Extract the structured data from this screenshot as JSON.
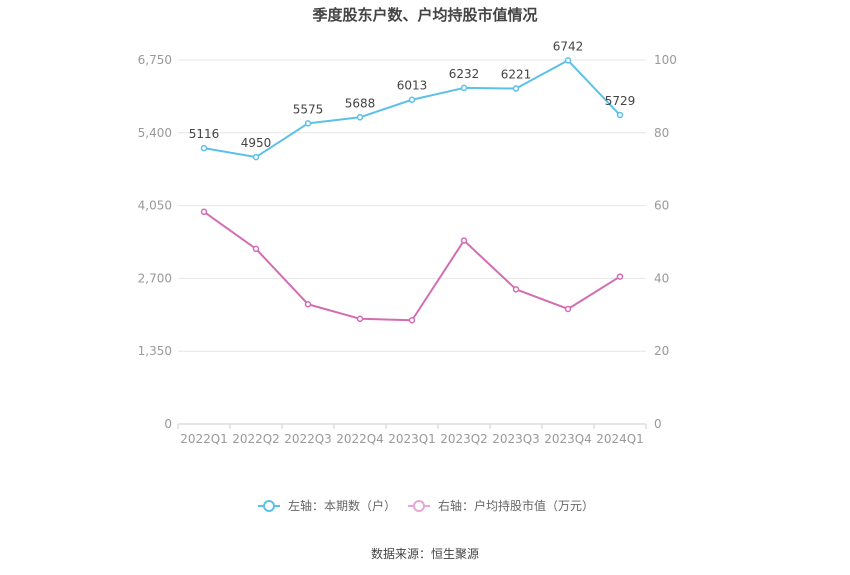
{
  "chart_data": {
    "type": "line",
    "title": "季度股东户数、户均持股市值情况",
    "categories": [
      "2022Q1",
      "2022Q2",
      "2022Q3",
      "2022Q4",
      "2023Q1",
      "2023Q2",
      "2023Q3",
      "2023Q4",
      "2024Q1"
    ],
    "y_left": {
      "ticks": [
        "0",
        "1,350",
        "2,700",
        "4,050",
        "5,400",
        "6,750"
      ],
      "range": [
        0,
        6750
      ]
    },
    "y_right": {
      "ticks": [
        "0",
        "20",
        "40",
        "60",
        "80",
        "100"
      ],
      "range": [
        0,
        100
      ]
    },
    "series": [
      {
        "name": "左轴：本期数（户）",
        "axis": "left",
        "color": "#5bc0ea",
        "values": [
          5116,
          4950,
          5575,
          5688,
          6013,
          6232,
          6221,
          6742,
          5729
        ],
        "labels": [
          "5116",
          "4950",
          "5575",
          "5688",
          "6013",
          "6232",
          "6221",
          "6742",
          "5729"
        ]
      },
      {
        "name": "右轴：户均持股市值（万元）",
        "axis": "right",
        "color": "#d46cb4",
        "values": [
          58.3,
          48.1,
          32.9,
          28.9,
          28.5,
          50.4,
          37.0,
          31.6,
          40.5
        ]
      }
    ],
    "grid": true,
    "legend_position": "bottom"
  },
  "source": "数据来源：恒生聚源"
}
